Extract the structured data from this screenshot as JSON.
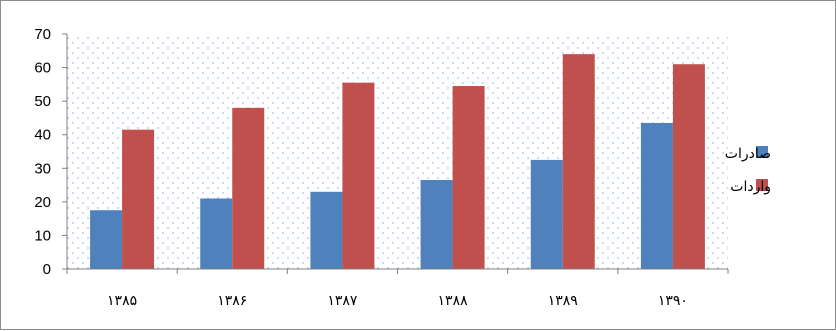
{
  "chart_data": {
    "type": "bar",
    "categories": [
      "۱۳۸۵",
      "۱۳۸۶",
      "۱۳۸۷",
      "۱۳۸۸",
      "۱۳۸۹",
      "۱۳۹۰"
    ],
    "series": [
      {
        "name": "صادرات",
        "color": "#4f81bd",
        "values": [
          17.5,
          21,
          23,
          26.5,
          32.5,
          43.5
        ]
      },
      {
        "name": "واردات",
        "color": "#c0504d",
        "values": [
          41.5,
          48,
          55.5,
          54.5,
          64,
          61
        ]
      }
    ],
    "y_ticks": [
      "0",
      "10",
      "20",
      "30",
      "40",
      "50",
      "60",
      "70"
    ],
    "ylim": [
      0,
      70
    ],
    "grid": "dotted",
    "legend_position": "right"
  }
}
